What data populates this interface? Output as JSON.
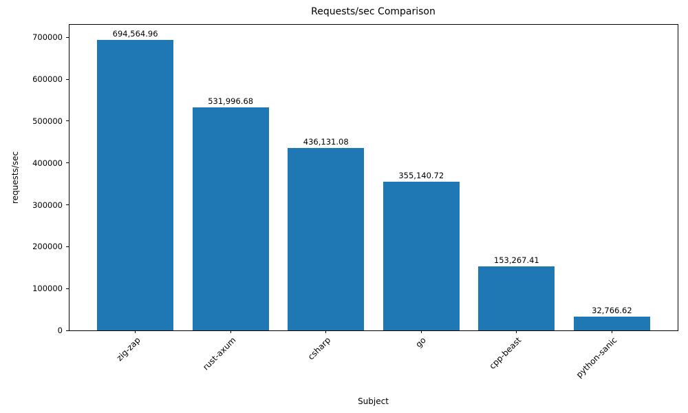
{
  "chart_data": {
    "type": "bar",
    "title": "Requests/sec Comparison",
    "xlabel": "Subject",
    "ylabel": "requests/sec",
    "categories": [
      "zig-zap",
      "rust-axum",
      "csharp",
      "go",
      "cpp-beast",
      "python-sanic"
    ],
    "values": [
      694564.96,
      531996.68,
      436131.08,
      355140.72,
      153267.41,
      32766.62
    ],
    "value_labels": [
      "694,564.96",
      "531,996.68",
      "436,131.08",
      "355,140.72",
      "153,267.41",
      "32,766.62"
    ],
    "ylim": [
      0,
      730000
    ],
    "y_ticks": [
      0,
      100000,
      200000,
      300000,
      400000,
      500000,
      600000,
      700000
    ],
    "y_tick_labels": [
      "0",
      "100000",
      "200000",
      "300000",
      "400000",
      "500000",
      "600000",
      "700000"
    ],
    "bar_color": "#1f77b4",
    "grid": false,
    "legend": "none",
    "x_tick_rotation": 45
  }
}
